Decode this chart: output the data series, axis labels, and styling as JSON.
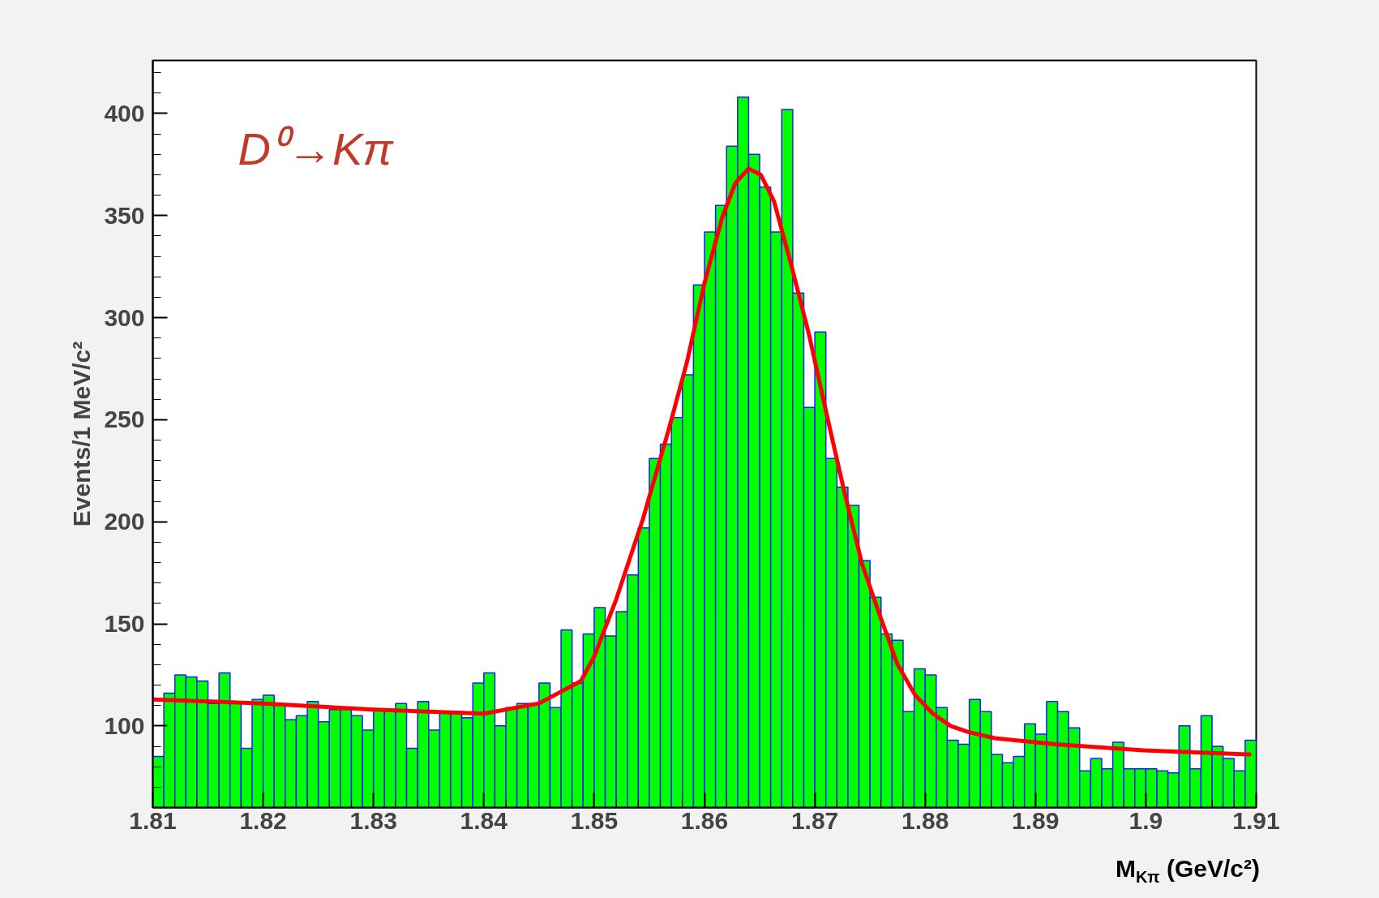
{
  "chart_data": {
    "type": "histogram",
    "xlabel": "M$_{Kπ}$ (GeV/c²)",
    "ylabel": "Events/1 MeV/c²",
    "annotations": [
      "D⁰→Kπ"
    ],
    "xlim": [
      1.81,
      1.91
    ],
    "ylim": [
      60,
      426
    ],
    "xticks": [
      1.81,
      1.82,
      1.83,
      1.84,
      1.85,
      1.86,
      1.87,
      1.88,
      1.89,
      1.9,
      1.91
    ],
    "yticks": [
      100,
      150,
      200,
      250,
      300,
      350,
      400
    ],
    "grid": false,
    "series": [
      {
        "color": "#00ff00",
        "bins": [
          1.81,
          1.811,
          1.812,
          1.813,
          1.814,
          1.815,
          1.816,
          1.817,
          1.818,
          1.819,
          1.82,
          1.821,
          1.822,
          1.823,
          1.824,
          1.825,
          1.826,
          1.827,
          1.828,
          1.829,
          1.83,
          1.831,
          1.832,
          1.833,
          1.834,
          1.835,
          1.836,
          1.837,
          1.838,
          1.839,
          1.84,
          1.841,
          1.842,
          1.843,
          1.844,
          1.845,
          1.846,
          1.847,
          1.848,
          1.849,
          1.85,
          1.851,
          1.852,
          1.853,
          1.854,
          1.855,
          1.856,
          1.857,
          1.858,
          1.859,
          1.86,
          1.861,
          1.862,
          1.863,
          1.864,
          1.865,
          1.866,
          1.867,
          1.868,
          1.869,
          1.87,
          1.871,
          1.872,
          1.873,
          1.874,
          1.875,
          1.876,
          1.877,
          1.878,
          1.879,
          1.88,
          1.881,
          1.882,
          1.883,
          1.884,
          1.885,
          1.886,
          1.887,
          1.888,
          1.889,
          1.89,
          1.891,
          1.892,
          1.893,
          1.894,
          1.895,
          1.896,
          1.897,
          1.898,
          1.899,
          1.9,
          1.901,
          1.902,
          1.903,
          1.904,
          1.905,
          1.906,
          1.907,
          1.908,
          1.909,
          1.91
        ],
        "values": [
          85,
          116,
          125,
          124,
          122,
          111,
          126,
          111,
          89,
          113,
          115,
          111,
          103,
          105,
          112,
          102,
          108,
          108,
          105,
          98,
          108,
          108,
          111,
          89,
          112,
          98,
          107,
          107,
          104,
          121,
          126,
          100,
          109,
          111,
          111,
          121,
          109,
          147,
          121,
          145,
          158,
          144,
          156,
          174,
          197,
          231,
          238,
          251,
          272,
          316,
          342,
          355,
          384,
          408,
          380,
          364,
          342,
          402,
          312,
          256,
          293,
          231,
          217,
          208,
          181,
          163,
          145,
          142,
          107,
          128,
          125,
          109,
          93,
          91,
          113,
          107,
          86,
          82,
          85,
          101,
          96,
          112,
          107,
          99,
          78,
          84,
          79,
          92,
          79,
          79,
          79,
          78,
          77,
          100,
          79,
          105,
          90,
          84,
          78,
          93
        ]
      },
      {
        "type": "line",
        "color": "#ff0000",
        "x": [
          1.81,
          1.82,
          1.83,
          1.84,
          1.845,
          1.8488,
          1.85,
          1.852,
          1.8544,
          1.8568,
          1.8584,
          1.86,
          1.8616,
          1.8628,
          1.864,
          1.8651,
          1.8663,
          1.8679,
          1.8695,
          1.8711,
          1.8727,
          1.8743,
          1.8759,
          1.8775,
          1.8791,
          1.8807,
          1.8823,
          1.8839,
          1.8863,
          1.8918,
          1.8998,
          1.9094
        ],
        "values": [
          113,
          111,
          108,
          106,
          111,
          122,
          134,
          162,
          201,
          246,
          278,
          317,
          349,
          366,
          373,
          370,
          357,
          325,
          291,
          252,
          214,
          179,
          154,
          130,
          115,
          106,
          100,
          97,
          94,
          91,
          88,
          86
        ]
      }
    ]
  }
}
